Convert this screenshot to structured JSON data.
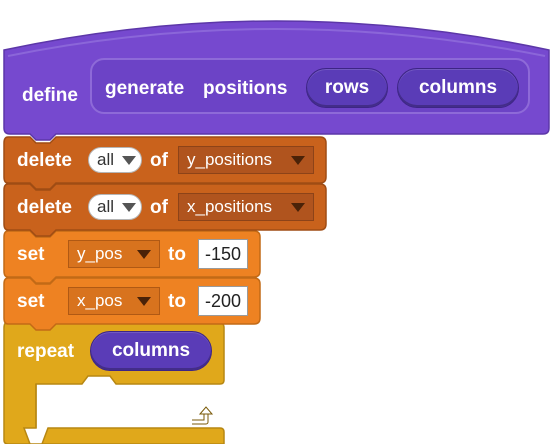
{
  "colors": {
    "define_hat": "#7649cf",
    "param": "#5a3cb7",
    "list_block": "#c9621c",
    "variable_block": "#ee8222",
    "control_block": "#e0a81b"
  },
  "define_block": {
    "keyword": "define",
    "name_words": [
      "generate",
      "positions"
    ],
    "params": [
      "rows",
      "columns"
    ]
  },
  "list_blocks": [
    {
      "keyword": "delete",
      "option": "all",
      "of": "of",
      "list": "y_positions"
    },
    {
      "keyword": "delete",
      "option": "all",
      "of": "of",
      "list": "x_positions"
    }
  ],
  "set_blocks": [
    {
      "keyword": "set",
      "variable": "y_pos",
      "to": "to",
      "value": "-150"
    },
    {
      "keyword": "set",
      "variable": "x_pos",
      "to": "to",
      "value": "-200"
    }
  ],
  "repeat_block": {
    "keyword": "repeat",
    "count_param": "columns",
    "loop_icon": "loop-arrow-icon"
  }
}
